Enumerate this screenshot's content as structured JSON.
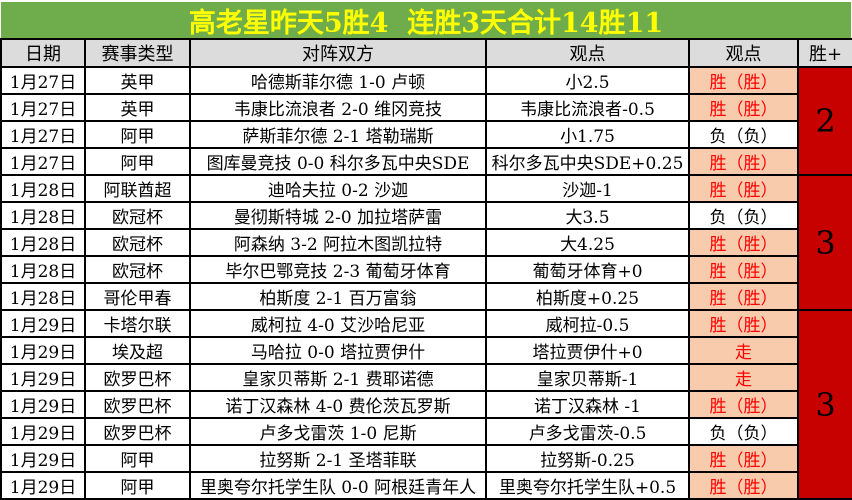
{
  "banner": {
    "text": "高老星昨天5胜4  连胜3天合计14胜11"
  },
  "columns": [
    "日期",
    "赛事类型",
    "对阵双方",
    "观点",
    "观点",
    "胜+"
  ],
  "rows": [
    {
      "date": "1月27日",
      "league": "英甲",
      "match": "哈德斯菲尔德 1-0 卢顿",
      "pick": "小2.5",
      "result": "胜（胜）",
      "status": "win"
    },
    {
      "date": "1月27日",
      "league": "英甲",
      "match": "韦康比流浪者 2-0 维冈竞技",
      "pick": "韦康比流浪者-0.5",
      "result": "胜（胜）",
      "status": "win"
    },
    {
      "date": "1月27日",
      "league": "阿甲",
      "match": "萨斯菲尔德 2-1 塔勒瑞斯",
      "pick": "小1.75",
      "result": "负（负）",
      "status": "lose"
    },
    {
      "date": "1月27日",
      "league": "阿甲",
      "match": "图库曼竞技 0-0 科尔多瓦中央SDE",
      "pick": "科尔多瓦中央SDE+0.25",
      "result": "胜（胜）",
      "status": "win"
    },
    {
      "date": "1月28日",
      "league": "阿联酋超",
      "match": "迪哈夫拉 0-2 沙迦",
      "pick": "沙迦-1",
      "result": "胜（胜）",
      "status": "win"
    },
    {
      "date": "1月28日",
      "league": "欧冠杯",
      "match": "曼彻斯特城 2-0 加拉塔萨雷",
      "pick": "大3.5",
      "result": "负（负）",
      "status": "lose"
    },
    {
      "date": "1月28日",
      "league": "欧冠杯",
      "match": "阿森纳 3-2 阿拉木图凯拉特",
      "pick": "大4.25",
      "result": "胜（胜）",
      "status": "win"
    },
    {
      "date": "1月28日",
      "league": "欧冠杯",
      "match": "毕尔巴鄂竞技 2-3 葡萄牙体育",
      "pick": "葡萄牙体育+0",
      "result": "胜（胜）",
      "status": "win"
    },
    {
      "date": "1月28日",
      "league": "哥伦甲春",
      "match": "柏斯度 2-1 百万富翁",
      "pick": "柏斯度+0.25",
      "result": "胜（胜）",
      "status": "win"
    },
    {
      "date": "1月29日",
      "league": "卡塔尔联",
      "match": "威柯拉 4-0 艾沙哈尼亚",
      "pick": "威柯拉-0.5",
      "result": "胜（胜）",
      "status": "win"
    },
    {
      "date": "1月29日",
      "league": "埃及超",
      "match": "马哈拉 0-0 塔拉贾伊什",
      "pick": "塔拉贾伊什+0",
      "result": "走",
      "status": "push"
    },
    {
      "date": "1月29日",
      "league": "欧罗巴杯",
      "match": "皇家贝蒂斯 2-1 费耶诺德",
      "pick": "皇家贝蒂斯-1",
      "result": "走",
      "status": "push"
    },
    {
      "date": "1月29日",
      "league": "欧罗巴杯",
      "match": "诺丁汉森林 4-0 费伦茨瓦罗斯",
      "pick": "诺丁汉森林 -1",
      "result": "胜（胜）",
      "status": "win"
    },
    {
      "date": "1月29日",
      "league": "欧罗巴杯",
      "match": "卢多戈雷茨 1-0 尼斯",
      "pick": "卢多戈雷茨-0.5",
      "result": "负（负）",
      "status": "lose"
    },
    {
      "date": "1月29日",
      "league": "阿甲",
      "match": "拉努斯 2-1 圣塔菲联",
      "pick": "拉努斯-0.25",
      "result": "胜（胜）",
      "status": "win"
    },
    {
      "date": "1月29日",
      "league": "阿甲",
      "match": "里奥夸尔托学生队 0-0 阿根廷青年人",
      "pick": "里奥夸尔托学生队+0.5",
      "result": "胜（胜）",
      "status": "win"
    }
  ],
  "streak_groups": [
    {
      "value": "2",
      "rows": 4
    },
    {
      "value": "3",
      "rows": 5
    },
    {
      "value": "3",
      "rows": 7
    }
  ],
  "colors": {
    "banner_bg": "#6FAC4B",
    "banner_text": "#FFFF00",
    "header_bg": "#DCDCDC",
    "win_bg": "#F8CBAD",
    "win_text": "#FF0000",
    "lose_bg": "#FFFFFF",
    "streak_bg": "#C70000",
    "border": "#000000"
  }
}
